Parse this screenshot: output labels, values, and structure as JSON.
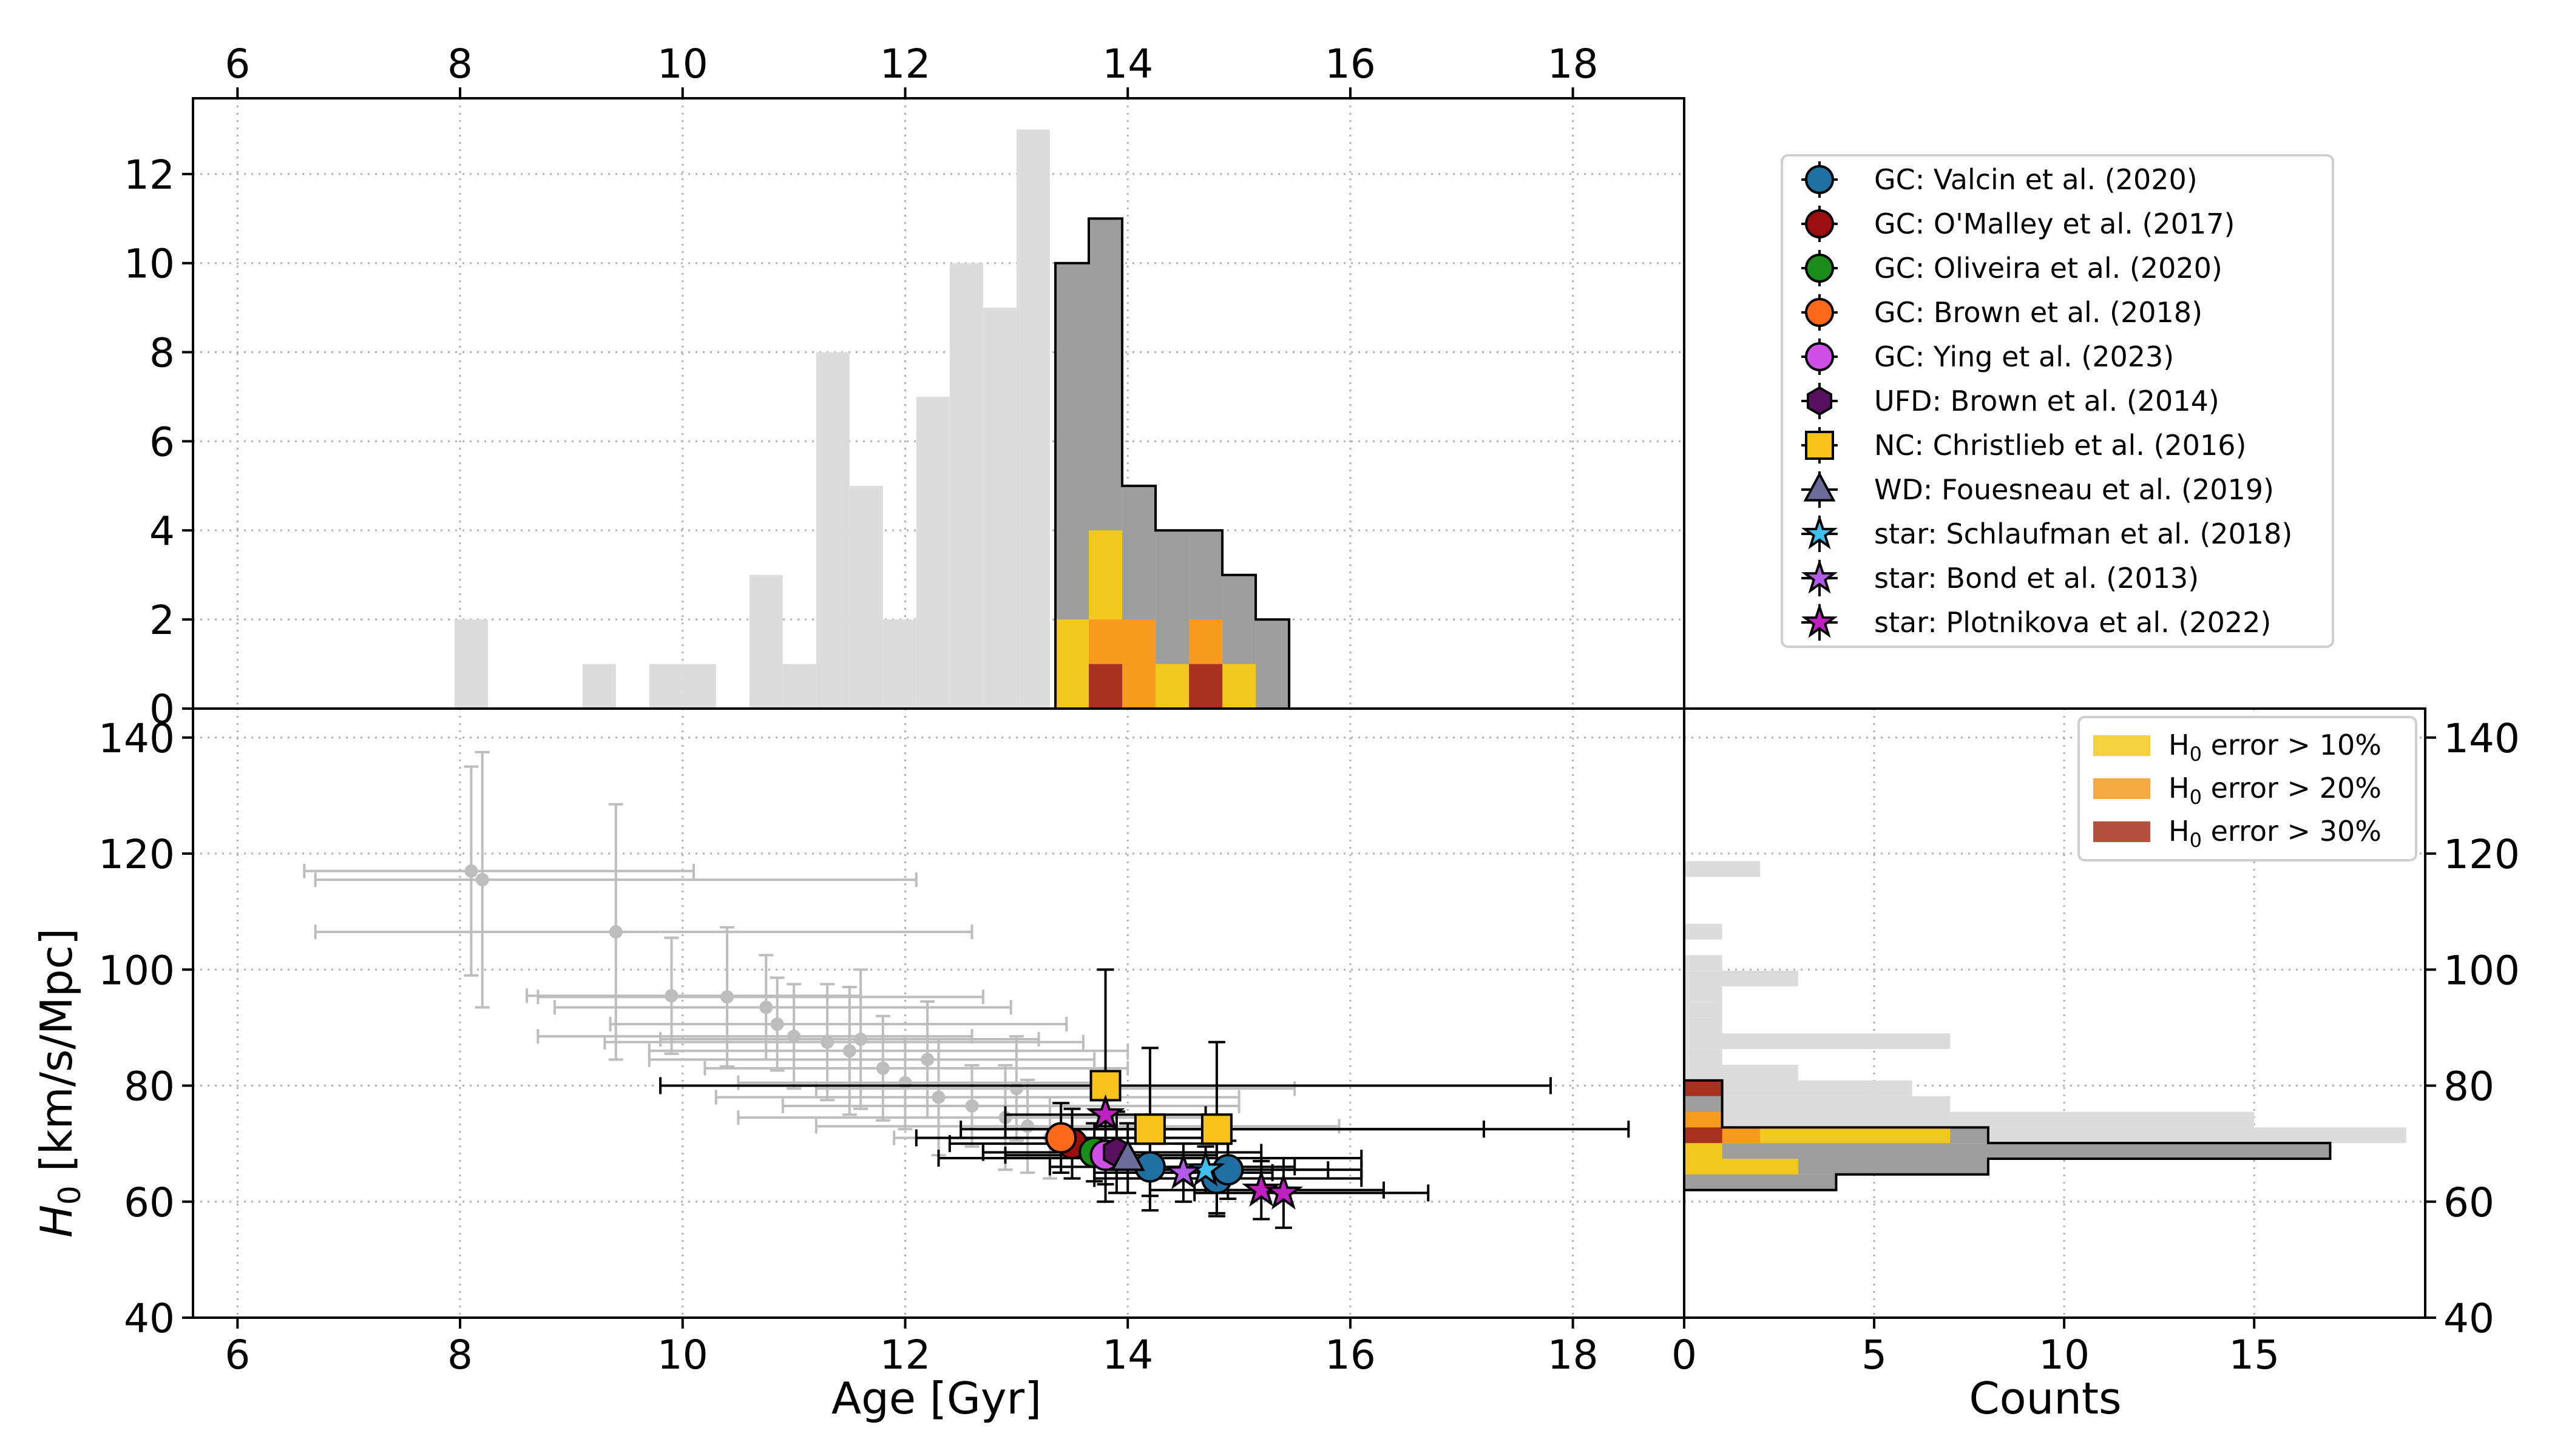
{
  "colors": {
    "valcin": "#1f6fa3",
    "omalley": "#9b0e0e",
    "oliveira": "#1a8c1a",
    "brown18": "#ff6a1a",
    "ying": "#d04fe8",
    "ufd": "#5a1060",
    "christlieb": "#f7c21a",
    "fouesneau": "#6c6c9a",
    "schlaufman": "#3fc0ec",
    "bond": "#b45ae8",
    "plotnikova": "#c020c0",
    "gray_data": "#bdbdbd",
    "gray_hist": "#dcdcdc",
    "dark_hist": "#9e9e9e",
    "err10": "#f3c81e",
    "err20": "#f79a1e",
    "err30": "#a8301e"
  },
  "chart_data": [
    {
      "type": "bar",
      "name": "Age histogram (top)",
      "xlim": [
        5.6,
        19.0
      ],
      "ylim": [
        0,
        13.7
      ],
      "xticks": [
        6,
        8,
        10,
        12,
        14,
        16,
        18
      ],
      "yticks": [
        0,
        2,
        4,
        6,
        8,
        10,
        12
      ],
      "bin_width": 0.3,
      "background_bins": {
        "left_edges": [
          7.95,
          9.1,
          9.7,
          10.0,
          10.6,
          10.9,
          11.2,
          11.5,
          11.8,
          12.1,
          12.4,
          12.7,
          13.0
        ],
        "counts": [
          2,
          1,
          1,
          1,
          3,
          1,
          8,
          5,
          2,
          7,
          10,
          9,
          13
        ]
      },
      "highlight_total": {
        "left_edges": [
          13.35,
          13.65,
          13.95,
          14.25,
          14.55,
          14.85,
          15.15
        ],
        "counts": [
          10,
          11,
          5,
          4,
          4,
          3,
          2
        ]
      },
      "err10": {
        "left_edges": [
          13.35,
          13.65,
          13.95,
          14.25,
          14.55,
          14.85
        ],
        "counts": [
          2,
          4,
          2,
          1,
          2,
          1
        ]
      },
      "err20": {
        "left_edges": [
          13.65,
          13.95,
          14.55
        ],
        "counts": [
          2,
          2,
          2
        ]
      },
      "err30": {
        "left_edges": [
          13.65,
          14.55
        ],
        "counts": [
          1,
          1
        ]
      }
    },
    {
      "type": "scatter",
      "name": "H0 vs Age (bottom-left)",
      "xlabel": "Age [Gyr]",
      "ylabel": "H0 [km/s/Mpc]",
      "xlim": [
        5.6,
        19.0
      ],
      "ylim": [
        40,
        145
      ],
      "xticks": [
        6,
        8,
        10,
        12,
        14,
        16,
        18
      ],
      "yticks": [
        40,
        60,
        80,
        100,
        120,
        140
      ],
      "gray_points": [
        {
          "x": 8.1,
          "y": 117,
          "xerr": [
            1.5,
            2.0
          ],
          "yerr": [
            18,
            18
          ]
        },
        {
          "x": 8.2,
          "y": 115.5,
          "xerr": [
            1.5,
            3.9
          ],
          "yerr": [
            22,
            22
          ]
        },
        {
          "x": 9.4,
          "y": 106.5,
          "xerr": [
            2.7,
            3.2
          ],
          "yerr": [
            22,
            22
          ]
        },
        {
          "x": 9.9,
          "y": 95.5,
          "xerr": [
            1.3,
            1.7
          ],
          "yerr": [
            10,
            10
          ]
        },
        {
          "x": 10.4,
          "y": 95.3,
          "xerr": [
            1.7,
            2.3
          ],
          "yerr": [
            12,
            12
          ]
        },
        {
          "x": 10.75,
          "y": 93.5,
          "xerr": [
            1.9,
            2.2
          ],
          "yerr": [
            9,
            9
          ]
        },
        {
          "x": 10.85,
          "y": 90.6,
          "xerr": [
            1.5,
            2.6
          ],
          "yerr": [
            8,
            8
          ]
        },
        {
          "x": 11.0,
          "y": 88.5,
          "xerr": [
            2.3,
            1.6
          ],
          "yerr": [
            9,
            9
          ]
        },
        {
          "x": 11.3,
          "y": 87.5,
          "xerr": [
            2.0,
            2.3
          ],
          "yerr": [
            10,
            10
          ]
        },
        {
          "x": 11.5,
          "y": 86.0,
          "xerr": [
            1.8,
            2.5
          ],
          "yerr": [
            11,
            11
          ]
        },
        {
          "x": 11.8,
          "y": 83.0,
          "xerr": [
            1.6,
            2.2
          ],
          "yerr": [
            9,
            9
          ]
        },
        {
          "x": 12.0,
          "y": 80.5,
          "xerr": [
            1.5,
            1.8
          ],
          "yerr": [
            8,
            8
          ]
        },
        {
          "x": 12.3,
          "y": 78.0,
          "xerr": [
            2.0,
            2.7
          ],
          "yerr": [
            10,
            10
          ]
        },
        {
          "x": 12.6,
          "y": 76.5,
          "xerr": [
            1.7,
            2.4
          ],
          "yerr": [
            7,
            7
          ]
        },
        {
          "x": 12.9,
          "y": 74.5,
          "xerr": [
            2.4,
            1.9
          ],
          "yerr": [
            9,
            9
          ]
        },
        {
          "x": 13.1,
          "y": 73.0,
          "xerr": [
            1.9,
            2.8
          ],
          "yerr": [
            8,
            8
          ]
        },
        {
          "x": 13.3,
          "y": 71.0,
          "xerr": [
            1.4,
            1.6
          ],
          "yerr": [
            7,
            7
          ]
        },
        {
          "x": 12.2,
          "y": 84.5,
          "xerr": [
            2.5,
            1.5
          ],
          "yerr": [
            10,
            10
          ]
        },
        {
          "x": 11.6,
          "y": 88.0,
          "xerr": [
            1.8,
            1.6
          ],
          "yerr": [
            12,
            12
          ]
        },
        {
          "x": 13.0,
          "y": 79.5,
          "xerr": [
            1.8,
            2.5
          ],
          "yerr": [
            9,
            9
          ]
        }
      ],
      "series": [
        {
          "name": "GC: Valcin et al. (2020)",
          "marker": "circle",
          "color_key": "valcin",
          "points": [
            {
              "x": 14.2,
              "y": 66,
              "xerr": [
                0.9,
                1.3
              ],
              "yerr": [
                5,
                5
              ]
            },
            {
              "x": 14.8,
              "y": 64,
              "xerr": [
                1.1,
                1.3
              ],
              "yerr": [
                6,
                6
              ]
            },
            {
              "x": 14.9,
              "y": 65.5,
              "xerr": [
                1.0,
                1.2
              ],
              "yerr": [
                5,
                5
              ]
            }
          ]
        },
        {
          "name": "GC: O'Malley et al. (2017)",
          "marker": "circle",
          "color_key": "omalley",
          "points": [
            {
              "x": 13.5,
              "y": 70,
              "xerr": [
                1.1,
                1.4
              ],
              "yerr": [
                6,
                6
              ]
            }
          ]
        },
        {
          "name": "GC: Oliveira et al. (2020)",
          "marker": "circle",
          "color_key": "oliveira",
          "points": [
            {
              "x": 13.7,
              "y": 68.5,
              "xerr": [
                1.0,
                1.1
              ],
              "yerr": [
                5,
                5
              ]
            }
          ]
        },
        {
          "name": "GC: Brown et al. (2018)",
          "marker": "circle",
          "color_key": "brown18",
          "points": [
            {
              "x": 13.4,
              "y": 71,
              "xerr": [
                1.3,
                1.5
              ],
              "yerr": [
                6,
                6
              ]
            }
          ]
        },
        {
          "name": "GC: Ying et al. (2023)",
          "marker": "circle",
          "color_key": "ying",
          "points": [
            {
              "x": 13.8,
              "y": 68,
              "xerr": [
                0.9,
                1.0
              ],
              "yerr": [
                5,
                5
              ]
            }
          ]
        },
        {
          "name": "UFD: Brown et al. (2014)",
          "marker": "hexagon",
          "color_key": "ufd",
          "points": [
            {
              "x": 13.9,
              "y": 68.5,
              "xerr": [
                1.2,
                1.3
              ],
              "yerr": [
                7,
                7
              ]
            }
          ]
        },
        {
          "name": "NC: Christlieb et al. (2016)",
          "marker": "square",
          "color_key": "christlieb",
          "points": [
            {
              "x": 13.8,
              "y": 80,
              "xerr": [
                4.0,
                4.0
              ],
              "yerr": [
                20,
                20
              ]
            },
            {
              "x": 14.2,
              "y": 72.5,
              "xerr": [
                1.7,
                3.0
              ],
              "yerr": [
                14,
                14
              ]
            },
            {
              "x": 14.8,
              "y": 72.5,
              "xerr": [
                1.9,
                3.7
              ],
              "yerr": [
                15,
                15
              ]
            }
          ]
        },
        {
          "name": "WD: Fouesneau et al. (2019)",
          "marker": "triangle",
          "color_key": "fouesneau",
          "points": [
            {
              "x": 14.0,
              "y": 67.5,
              "xerr": [
                1.7,
                2.1
              ],
              "yerr": [
                6,
                6
              ]
            }
          ]
        },
        {
          "name": "star: Schlaufman et al. (2018)",
          "marker": "star",
          "color_key": "schlaufman",
          "points": [
            {
              "x": 14.7,
              "y": 65.5,
              "xerr": [
                0.9,
                1.1
              ],
              "yerr": [
                4,
                4
              ]
            }
          ]
        },
        {
          "name": "star: Bond et al. (2013)",
          "marker": "star",
          "color_key": "bond",
          "points": [
            {
              "x": 14.5,
              "y": 65,
              "xerr": [
                0.8,
                0.8
              ],
              "yerr": [
                5,
                5
              ]
            }
          ]
        },
        {
          "name": "star: Plotnikova et al. (2022)",
          "marker": "star",
          "color_key": "plotnikova",
          "points": [
            {
              "x": 13.8,
              "y": 75,
              "xerr": [
                0.9,
                0.9
              ],
              "yerr": [
                5,
                5
              ]
            },
            {
              "x": 15.2,
              "y": 62,
              "xerr": [
                1.0,
                1.1
              ],
              "yerr": [
                5,
                5
              ]
            },
            {
              "x": 15.4,
              "y": 61.5,
              "xerr": [
                0.8,
                1.3
              ],
              "yerr": [
                6,
                6
              ]
            }
          ]
        }
      ]
    },
    {
      "type": "bar",
      "orientation": "horizontal",
      "name": "H0 histogram (bottom-right)",
      "xlabel": "Counts",
      "xlim": [
        0,
        19.5
      ],
      "ylim": [
        40,
        145
      ],
      "xticks": [
        0,
        5,
        10,
        15
      ],
      "yticks": [
        40,
        60,
        80,
        100,
        120,
        140
      ],
      "bin_height": 2.7,
      "background_bins": {
        "bottom_edges": [
          62,
          64.7,
          67.4,
          70.1,
          72.8,
          75.5,
          78.2,
          80.9,
          83.6,
          86.3,
          89,
          91.7,
          94.4,
          97.1,
          99.8,
          102.5,
          105.2,
          107.9,
          110.6,
          113.3,
          116
        ],
        "counts": [
          4,
          8,
          17,
          19,
          15,
          7,
          6,
          3,
          1,
          7,
          1,
          1,
          1,
          3,
          1,
          0,
          1,
          0,
          0,
          0,
          2
        ]
      },
      "highlight_total": {
        "bottom_edges": [
          62,
          64.7,
          67.4,
          70.1,
          72.8,
          75.5,
          78.2
        ],
        "counts": [
          4,
          8,
          17,
          8,
          1,
          1,
          1
        ]
      },
      "err10": {
        "bottom_edges": [
          64.7,
          67.4,
          70.1,
          72.8
        ],
        "counts": [
          3,
          1,
          7,
          1
        ]
      },
      "err20": {
        "bottom_edges": [
          70.1,
          72.8
        ],
        "counts": [
          2,
          1
        ]
      },
      "err30": {
        "bottom_edges": [
          70.1,
          78.2
        ],
        "counts": [
          1,
          1
        ]
      }
    }
  ],
  "legend_top": {
    "entries": [
      {
        "label": "GC: Valcin et al. (2020)",
        "marker": "circle",
        "color_key": "valcin"
      },
      {
        "label": "GC: O'Malley et al. (2017)",
        "marker": "circle",
        "color_key": "omalley"
      },
      {
        "label": "GC: Oliveira et al. (2020)",
        "marker": "circle",
        "color_key": "oliveira"
      },
      {
        "label": "GC: Brown et al. (2018)",
        "marker": "circle",
        "color_key": "brown18"
      },
      {
        "label": "GC: Ying et al. (2023)",
        "marker": "circle",
        "color_key": "ying"
      },
      {
        "label": "UFD: Brown et al. (2014)",
        "marker": "hexagon",
        "color_key": "ufd"
      },
      {
        "label": "NC: Christlieb et al. (2016)",
        "marker": "square",
        "color_key": "christlieb"
      },
      {
        "label": "WD: Fouesneau et al. (2019)",
        "marker": "triangle",
        "color_key": "fouesneau"
      },
      {
        "label": "star: Schlaufman et al. (2018)",
        "marker": "star",
        "color_key": "schlaufman"
      },
      {
        "label": "star: Bond et al. (2013)",
        "marker": "star",
        "color_key": "bond"
      },
      {
        "label": "star: Plotnikova et al. (2022)",
        "marker": "star",
        "color_key": "plotnikova"
      }
    ]
  },
  "legend_error": {
    "entries": [
      {
        "prefix": "H",
        "sub": "0",
        "suffix": " error > 10%",
        "color_key": "err10"
      },
      {
        "prefix": "H",
        "sub": "0",
        "suffix": " error > 20%",
        "color_key": "err20"
      },
      {
        "prefix": "H",
        "sub": "0",
        "suffix": " error > 30%",
        "color_key": "err30"
      }
    ]
  },
  "labels": {
    "x_age": "Age [Gyr]",
    "x_counts": "Counts",
    "y_h0_italic": "H",
    "y_h0_sub": "0",
    "y_h0_rest": " [km/s/Mpc]"
  }
}
